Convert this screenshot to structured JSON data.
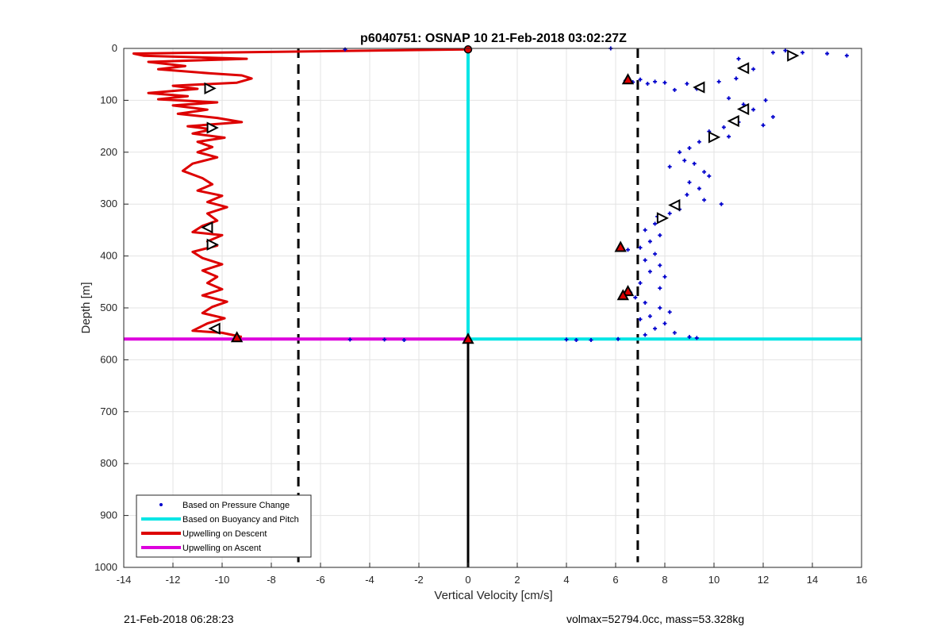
{
  "footer": {
    "timestamp": "21-Feb-2018 06:28:23",
    "summary": "volmax=52794.0cc, mass=53.328kg"
  },
  "chart_data": {
    "type": "line",
    "title": "p6040751: OSNAP 10 21-Feb-2018 03:02:27Z",
    "xlabel": "Vertical Velocity [cm/s]",
    "ylabel": "Depth [m]",
    "xlim": [
      -14,
      16
    ],
    "ylim": [
      1000,
      0
    ],
    "y_reversed": true,
    "grid": true,
    "xticks": [
      -14,
      -12,
      -10,
      -8,
      -6,
      -4,
      -2,
      0,
      2,
      4,
      6,
      8,
      10,
      12,
      14,
      16
    ],
    "yticks": [
      0,
      100,
      200,
      300,
      400,
      500,
      600,
      700,
      800,
      900,
      1000
    ],
    "legend_position": "bottom-left",
    "colors": {
      "pressure": "#0000cc",
      "buoyancy": "#00e5e5",
      "descent": "#dd0000",
      "ascent": "#dd00dd",
      "reference": "#000000"
    },
    "legend": [
      {
        "label": "Based on Pressure Change",
        "style": "dot",
        "color": "#0000cc"
      },
      {
        "label": "Based on Buoyancy and Pitch",
        "style": "line",
        "color": "#00e5e5"
      },
      {
        "label": "Upwelling on Descent",
        "style": "line",
        "color": "#dd0000"
      },
      {
        "label": "Upwelling on Ascent",
        "style": "line",
        "color": "#dd00dd"
      }
    ],
    "series": {
      "upwelling_descent": [
        [
          0,
          2
        ],
        [
          -13.6,
          10
        ],
        [
          -13.2,
          14
        ],
        [
          -9.0,
          20
        ],
        [
          -13.0,
          26
        ],
        [
          -11.5,
          34
        ],
        [
          -12.6,
          40
        ],
        [
          -10.5,
          48
        ],
        [
          -9.2,
          52
        ],
        [
          -8.8,
          58
        ],
        [
          -9.4,
          66
        ],
        [
          -12.0,
          72
        ],
        [
          -11.0,
          78
        ],
        [
          -13.0,
          86
        ],
        [
          -11.4,
          92
        ],
        [
          -12.6,
          98
        ],
        [
          -10.2,
          104
        ],
        [
          -12.0,
          110
        ],
        [
          -10.6,
          118
        ],
        [
          -11.8,
          126
        ],
        [
          -10.2,
          134
        ],
        [
          -9.2,
          142
        ],
        [
          -11.4,
          150
        ],
        [
          -10.4,
          156
        ],
        [
          -11.2,
          164
        ],
        [
          -9.9,
          172
        ],
        [
          -11.0,
          180
        ],
        [
          -10.4,
          190
        ],
        [
          -11.0,
          200
        ],
        [
          -10.2,
          210
        ],
        [
          -11.2,
          222
        ],
        [
          -11.6,
          236
        ],
        [
          -10.8,
          250
        ],
        [
          -10.4,
          262
        ],
        [
          -11.0,
          274
        ],
        [
          -10.0,
          284
        ],
        [
          -10.6,
          296
        ],
        [
          -9.8,
          306
        ],
        [
          -10.6,
          318
        ],
        [
          -10.2,
          332
        ],
        [
          -10.8,
          342
        ],
        [
          -11.2,
          354
        ],
        [
          -10.0,
          360
        ],
        [
          -10.6,
          372
        ],
        [
          -10.2,
          380
        ],
        [
          -11.2,
          392
        ],
        [
          -10.8,
          404
        ],
        [
          -10.0,
          416
        ],
        [
          -10.8,
          428
        ],
        [
          -10.2,
          440
        ],
        [
          -10.6,
          452
        ],
        [
          -10.0,
          464
        ],
        [
          -10.8,
          476
        ],
        [
          -9.8,
          488
        ],
        [
          -10.4,
          498
        ],
        [
          -10.8,
          510
        ],
        [
          -9.9,
          520
        ],
        [
          -10.6,
          530
        ],
        [
          -11.2,
          544
        ],
        [
          -10.0,
          548
        ],
        [
          -9.6,
          552
        ],
        [
          -9.2,
          556
        ]
      ],
      "upwelling_ascent": [
        [
          -14,
          560
        ],
        [
          0,
          560
        ]
      ],
      "buoyancy_pitch": [
        [
          0,
          0
        ],
        [
          0,
          560
        ],
        [
          16,
          560
        ]
      ],
      "zero_reference": [
        [
          0,
          560
        ],
        [
          0,
          1000
        ]
      ],
      "dashed_lines_x": [
        -6.9,
        6.9
      ],
      "pressure_change": [
        [
          5.8,
          0
        ],
        [
          6.4,
          62
        ],
        [
          6.7,
          65
        ],
        [
          7.0,
          60
        ],
        [
          7.3,
          68
        ],
        [
          7.6,
          64
        ],
        [
          8.0,
          66
        ],
        [
          8.4,
          80
        ],
        [
          8.9,
          68
        ],
        [
          9.3,
          78
        ],
        [
          10.2,
          64
        ],
        [
          10.9,
          58
        ],
        [
          11.6,
          40
        ],
        [
          12.4,
          8
        ],
        [
          12.9,
          4
        ],
        [
          13.2,
          14
        ],
        [
          13.6,
          8
        ],
        [
          14.6,
          10
        ],
        [
          15.4,
          14
        ],
        [
          11.0,
          20
        ],
        [
          10.6,
          96
        ],
        [
          11.2,
          108
        ],
        [
          12.1,
          100
        ],
        [
          11.6,
          118
        ],
        [
          12.4,
          132
        ],
        [
          12.0,
          148
        ],
        [
          11.0,
          142
        ],
        [
          10.4,
          152
        ],
        [
          9.8,
          160
        ],
        [
          10.6,
          170
        ],
        [
          9.4,
          180
        ],
        [
          9.0,
          192
        ],
        [
          8.6,
          200
        ],
        [
          8.8,
          216
        ],
        [
          9.2,
          222
        ],
        [
          9.6,
          238
        ],
        [
          8.2,
          228
        ],
        [
          9.8,
          246
        ],
        [
          9.0,
          258
        ],
        [
          9.4,
          270
        ],
        [
          8.9,
          282
        ],
        [
          9.6,
          292
        ],
        [
          10.3,
          300
        ],
        [
          8.6,
          310
        ],
        [
          8.2,
          318
        ],
        [
          7.7,
          324
        ],
        [
          7.6,
          338
        ],
        [
          7.2,
          350
        ],
        [
          7.8,
          360
        ],
        [
          7.4,
          372
        ],
        [
          7.0,
          384
        ],
        [
          6.5,
          388
        ],
        [
          7.6,
          396
        ],
        [
          7.2,
          408
        ],
        [
          7.8,
          418
        ],
        [
          7.4,
          430
        ],
        [
          8.0,
          440
        ],
        [
          7.0,
          452
        ],
        [
          7.8,
          462
        ],
        [
          6.6,
          470
        ],
        [
          6.8,
          480
        ],
        [
          7.2,
          490
        ],
        [
          7.8,
          500
        ],
        [
          8.2,
          508
        ],
        [
          7.4,
          516
        ],
        [
          7.0,
          522
        ],
        [
          8.0,
          530
        ],
        [
          7.6,
          540
        ],
        [
          8.4,
          548
        ],
        [
          7.2,
          552
        ],
        [
          9.0,
          556
        ],
        [
          9.3,
          558
        ],
        [
          6.1,
          560
        ],
        [
          4.0,
          561
        ],
        [
          4.4,
          562
        ],
        [
          5.0,
          562
        ],
        [
          -3.4,
          561
        ],
        [
          -2.6,
          562
        ],
        [
          -4.8,
          561
        ],
        [
          -5.0,
          2
        ]
      ],
      "markers": [
        {
          "x": 0,
          "y": 2,
          "shape": "dot-red"
        },
        {
          "x": -10.5,
          "y": 77,
          "shape": "right"
        },
        {
          "x": -10.4,
          "y": 153,
          "shape": "right"
        },
        {
          "x": -10.6,
          "y": 345,
          "shape": "left"
        },
        {
          "x": -10.4,
          "y": 378,
          "shape": "right"
        },
        {
          "x": -10.3,
          "y": 540,
          "shape": "left"
        },
        {
          "x": -9.4,
          "y": 557,
          "shape": "up-red"
        },
        {
          "x": 0,
          "y": 560,
          "shape": "up-red"
        },
        {
          "x": 6.5,
          "y": 60,
          "shape": "up-red"
        },
        {
          "x": 13.2,
          "y": 14,
          "shape": "right"
        },
        {
          "x": 11.2,
          "y": 38,
          "shape": "left"
        },
        {
          "x": 9.4,
          "y": 75,
          "shape": "left"
        },
        {
          "x": 11.2,
          "y": 117,
          "shape": "left"
        },
        {
          "x": 10.8,
          "y": 140,
          "shape": "left"
        },
        {
          "x": 10.0,
          "y": 171,
          "shape": "right"
        },
        {
          "x": 8.4,
          "y": 302,
          "shape": "left"
        },
        {
          "x": 7.9,
          "y": 327,
          "shape": "right"
        },
        {
          "x": 6.2,
          "y": 383,
          "shape": "up-red"
        },
        {
          "x": 6.5,
          "y": 468,
          "shape": "up-red"
        },
        {
          "x": 6.3,
          "y": 476,
          "shape": "up-red"
        }
      ]
    }
  }
}
